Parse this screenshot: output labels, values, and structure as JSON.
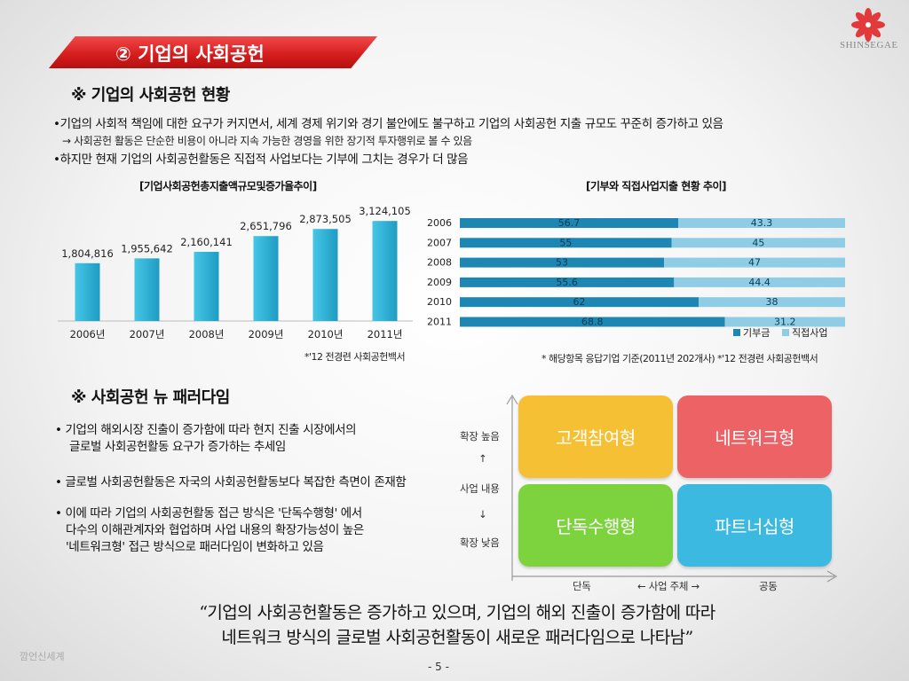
{
  "header": {
    "title": "② 기업의 사회공헌",
    "logo_text": "SHINSEGAE"
  },
  "section1": {
    "heading": "※ 기업의 사회공헌 현황",
    "bullets": [
      "•기업의 사회적 책임에 대한 요구가 커지면서, 세계 경제 위기와 경기 불안에도 불구하고 기업의 사회공헌 지출 규모도 꾸준히 증가하고 있음",
      "→ 사회공헌 활동은 단순한 비용이 아니라 지속 가능한 경영을 위한 장기적 투자행위로 볼 수 있음",
      "•하지만 현재 기업의 사회공헌활동은 직접적 사업보다는 기부에 그치는 경우가 더 많음"
    ]
  },
  "chart_data": [
    {
      "type": "bar",
      "title": "[기업사회공헌총지출액규모및증가율추이]",
      "categories": [
        "2006년",
        "2007년",
        "2008년",
        "2009년",
        "2010년",
        "2011년"
      ],
      "values": [
        1804816,
        1955642,
        2160141,
        2651796,
        2873505,
        3124105
      ],
      "value_labels": [
        "1,804,816",
        "1,955,642",
        "2,160,141",
        "2,651,796",
        "2,873,505",
        "3,124,105"
      ],
      "ylim": [
        0,
        3600000
      ],
      "grid": false,
      "color": "#29b3d6",
      "source": "*'12 전경련 사회공헌백서"
    },
    {
      "type": "bar",
      "orientation": "horizontal",
      "stacked": true,
      "title": "[기부와 직접사업지출 현황 추이]",
      "categories": [
        "2006",
        "2007",
        "2008",
        "2009",
        "2010",
        "2011"
      ],
      "series": [
        {
          "name": "기부금",
          "values": [
            56.7,
            55,
            53,
            55.6,
            62,
            68.8
          ],
          "color": "#1e86b3"
        },
        {
          "name": "직접사업",
          "values": [
            43.3,
            45,
            47,
            44.4,
            38,
            31.2
          ],
          "color": "#8fcde6"
        }
      ],
      "xlim": [
        0,
        100
      ],
      "legend": "bottom-right",
      "source": "* 해당항목 응답기업 기준(2011년 202개사) *'12 전경련 사회공헌백서"
    }
  ],
  "section2": {
    "heading": "※ 사회공헌 뉴 패러다임",
    "bullets": [
      [
        "• 기업의 해외시장 진출이 증가함에 따라  현지 진출 시장에서의",
        "글로벌 사회공헌활동 요구가 증가하는 추세임"
      ],
      [
        "• 글로벌 사회공헌활동은 자국의 사회공헌활동보다 복잡한 측면이 존재함"
      ],
      [
        "• 이에 따라 기업의 사회공헌활동 접근 방식은 '단독수행형' 에서",
        "다수의 이해관계자와 협업하며 사업 내용의 확장가능성이 높은",
        "'네트워크형'  접근 방식으로 패러다임이 변화하고 있음"
      ]
    ]
  },
  "matrix": {
    "quadrants": {
      "top_left": {
        "label": "고객참여형",
        "color": "#f5c033"
      },
      "top_right": {
        "label": "네트워크형",
        "color": "#ec6265"
      },
      "bottom_left": {
        "label": "단독수행형",
        "color": "#7cd33e"
      },
      "bottom_right": {
        "label": "파트너십형",
        "color": "#3cb9e0"
      }
    },
    "y_axis": {
      "high": "확장 높음",
      "up_arrow": "↑",
      "title": "사업 내용",
      "down_arrow": "↓",
      "low": "확장 낮음"
    },
    "x_axis": {
      "left": "단독",
      "title": "←  사업 주체 →",
      "right": "공동"
    }
  },
  "quote": {
    "line1": "“기업의 사회공헌활동은 증가하고 있으며, 기업의 해외 진출이 증가함에 따라",
    "line2": "네트워크 방식의 글로벌 사회공헌활동이 새로운 패러다임으로 나타남”"
  },
  "footer": {
    "brand": "깜언신세계",
    "page_number": "- 5 -"
  }
}
